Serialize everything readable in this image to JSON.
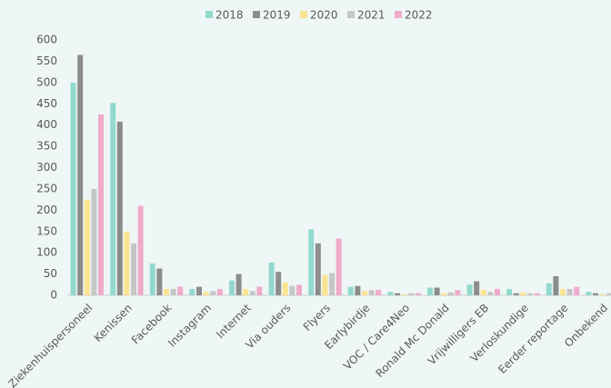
{
  "chart_data": {
    "type": "bar",
    "categories": [
      "Ziekenhuispersoneel",
      "Kenissen",
      "Facebook",
      "Instagram",
      "Internet",
      "Via ouders",
      "Flyers",
      "Earlybirdje",
      "VOC / Care4Neo",
      "Ronald Mc Donald",
      "Vrijwilligers EB",
      "Verloskundige",
      "Eerder reportage",
      "Onbekend"
    ],
    "series": [
      {
        "name": "2018",
        "color": "#93d9cd",
        "values": [
          500,
          452,
          75,
          15,
          35,
          77,
          155,
          20,
          8,
          18,
          25,
          15,
          28,
          8
        ]
      },
      {
        "name": "2019",
        "color": "#8c8c8c",
        "values": [
          565,
          408,
          63,
          20,
          50,
          55,
          122,
          22,
          5,
          18,
          33,
          5,
          45,
          5
        ]
      },
      {
        "name": "2020",
        "color": "#fbe491",
        "values": [
          225,
          150,
          15,
          8,
          15,
          30,
          48,
          10,
          2,
          5,
          13,
          7,
          15,
          3
        ]
      },
      {
        "name": "2021",
        "color": "#c6c6c6",
        "values": [
          250,
          122,
          15,
          10,
          10,
          22,
          52,
          12,
          5,
          7,
          8,
          5,
          15,
          5
        ]
      },
      {
        "name": "2022",
        "color": "#f0aacb",
        "values": [
          425,
          210,
          20,
          15,
          20,
          25,
          133,
          13,
          5,
          12,
          15,
          5,
          20,
          25
        ]
      }
    ],
    "ylim": [
      0,
      600
    ],
    "yticks": [
      0,
      50,
      100,
      150,
      200,
      250,
      300,
      350,
      400,
      450,
      500,
      550,
      600
    ],
    "grid": false,
    "legend": "top"
  }
}
